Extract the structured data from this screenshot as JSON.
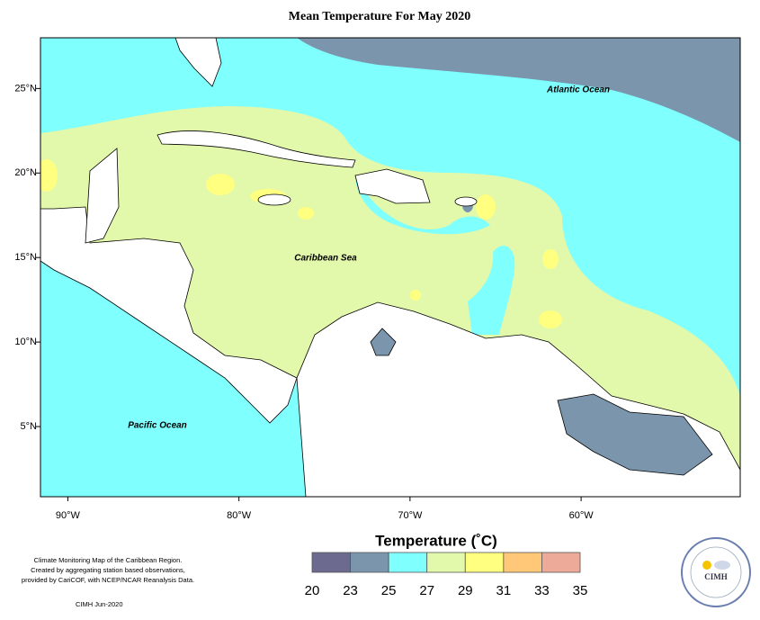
{
  "title": "Mean Temperature For May 2020",
  "map": {
    "lon_range": [
      -91.6,
      -50.7
    ],
    "lat_range": [
      0.85,
      28
    ],
    "lon_ticks": [
      {
        "value": -90,
        "label": "90°W"
      },
      {
        "value": -80,
        "label": "80°W"
      },
      {
        "value": -70,
        "label": "70°W"
      },
      {
        "value": -60,
        "label": "60°W"
      }
    ],
    "lat_ticks": [
      {
        "value": 25,
        "label": "25°N"
      },
      {
        "value": 20,
        "label": "20°N"
      },
      {
        "value": 15,
        "label": "15°N"
      },
      {
        "value": 10,
        "label": "10°N"
      },
      {
        "value": 5,
        "label": "5°N"
      }
    ],
    "labels": [
      "Atlantic Ocean",
      "Caribbean Sea",
      "Pacific Ocean"
    ]
  },
  "legend": {
    "title": "Temperature (˚C)",
    "ticks": [
      20,
      23,
      25,
      27,
      29,
      31,
      33,
      35
    ],
    "colors": [
      "#6c6a8e",
      "#7a95ac",
      "#80ffff",
      "#e2f8aa",
      "#ffff80",
      "#ffc878",
      "#eeaa98"
    ]
  },
  "notes": [
    "Climate Monitoring Map of the Caribbean Region.",
    "Created by aggregating station based observations,",
    "provided by CariCOF, with NCEP/NCAR Reanalysis Data."
  ],
  "credit": "CIMH  Jun-2020",
  "logo": "CIMH"
}
